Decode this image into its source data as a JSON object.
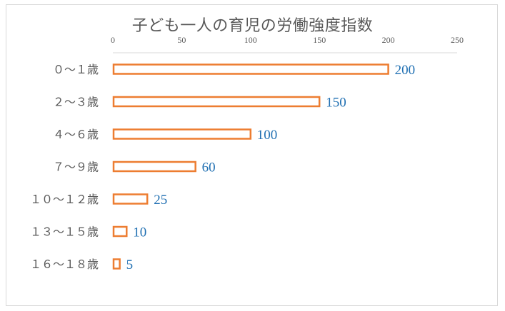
{
  "chart_data": {
    "type": "bar",
    "orientation": "horizontal",
    "title": "子ども一人の育児の労働強度指数",
    "categories": [
      "０～１歳",
      "２～３歳",
      "４～６歳",
      "７～９歳",
      "１０～１２歳",
      "１３～１５歳",
      "１６～１８歳"
    ],
    "values": [
      200,
      150,
      100,
      60,
      25,
      10,
      5
    ],
    "xlim": [
      0,
      250
    ],
    "ticks": [
      0,
      50,
      100,
      150,
      200,
      250
    ],
    "tick_labels": [
      "0",
      "50",
      "100",
      "150",
      "200",
      "250"
    ],
    "data_labels": [
      "200",
      "150",
      "100",
      "60",
      "25",
      "10",
      "5"
    ],
    "grid": false,
    "axis_position": "top",
    "bar_style": "outline",
    "bar_color": "#ed7d31",
    "label_color": "#1f6fb2"
  }
}
